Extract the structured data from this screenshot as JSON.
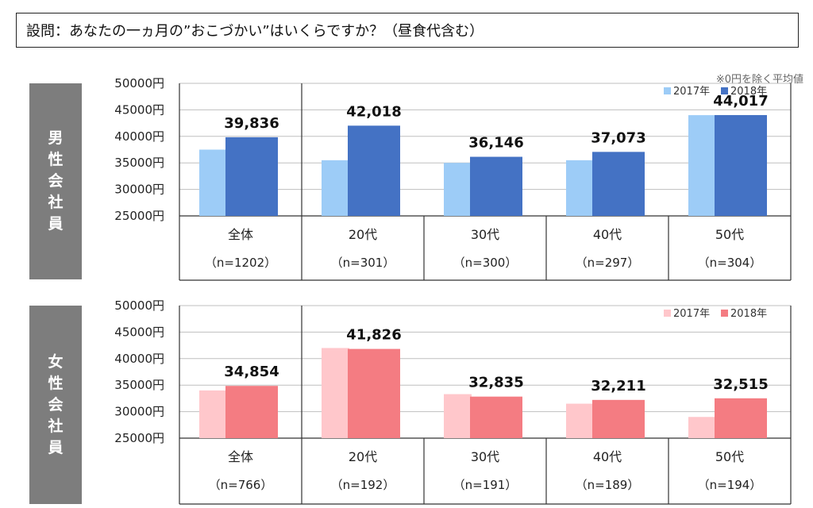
{
  "question": "設問：あなたの一ヵ月の”おこづかい”はいくらですか？（昼食代含む）",
  "note": "※0円を除く平均値",
  "chart_data": [
    {
      "type": "bar",
      "group_label": [
        "男",
        "性",
        "会",
        "社",
        "員"
      ],
      "categories": [
        "全体",
        "20代",
        "30代",
        "40代",
        "50代"
      ],
      "n_labels": [
        "（n=1202）",
        "（n=301）",
        "（n=300）",
        "（n=297）",
        "（n=304）"
      ],
      "ylim": [
        25000,
        50000
      ],
      "yticks": [
        "50000円",
        "45000円",
        "40000円",
        "35000円",
        "30000円",
        "25000円"
      ],
      "series": [
        {
          "name": "2017年",
          "color": "#9dccf7",
          "values": [
            37500,
            35500,
            35000,
            35500,
            44000
          ]
        },
        {
          "name": "2018年",
          "color": "#4472c4",
          "values": [
            39836,
            42018,
            36146,
            37073,
            44017
          ]
        }
      ],
      "data_labels": [
        "39,836",
        "42,018",
        "36,146",
        "37,073",
        "44,017"
      ],
      "legend_position": "top-right"
    },
    {
      "type": "bar",
      "group_label": [
        "女",
        "性",
        "会",
        "社",
        "員"
      ],
      "categories": [
        "全体",
        "20代",
        "30代",
        "40代",
        "50代"
      ],
      "n_labels": [
        "（n=766）",
        "（n=192）",
        "（n=191）",
        "（n=189）",
        "（n=194）"
      ],
      "ylim": [
        25000,
        50000
      ],
      "yticks": [
        "50000円",
        "45000円",
        "40000円",
        "35000円",
        "30000円",
        "25000円"
      ],
      "series": [
        {
          "name": "2017年",
          "color": "#ffc7cb",
          "values": [
            34000,
            42000,
            33300,
            31500,
            29000
          ]
        },
        {
          "name": "2018年",
          "color": "#f47c82",
          "values": [
            34854,
            41826,
            32835,
            32211,
            32515
          ]
        }
      ],
      "data_labels": [
        "34,854",
        "41,826",
        "32,835",
        "32,211",
        "32,515"
      ],
      "legend_position": "top-right"
    }
  ]
}
